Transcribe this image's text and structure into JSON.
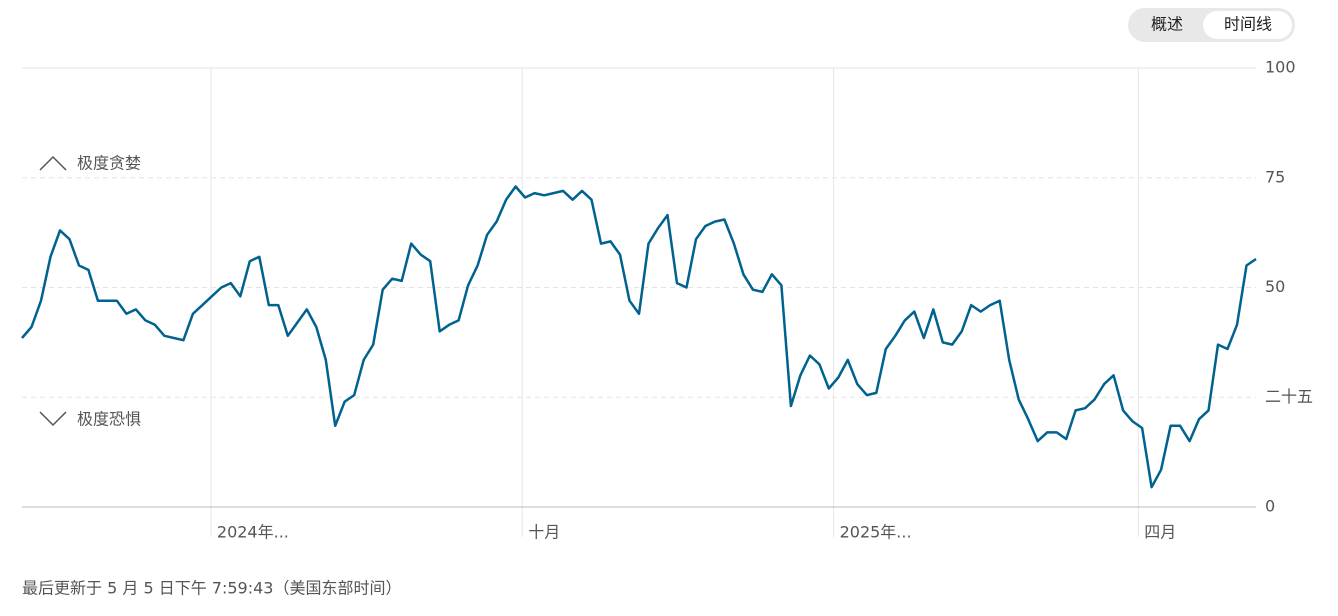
{
  "tabs": [
    "概述",
    "时间线"
  ],
  "footer": "最后更新于 5 月 5 日下午 7:59:43（美国东部时间）",
  "chart_data": {
    "type": "line",
    "annotations": [
      "极度贪婪",
      "极度恐惧"
    ],
    "xlim": [
      0,
      130
    ],
    "xticks": [
      {
        "value": 19.9,
        "label": "2024年..."
      },
      {
        "value": 52.7,
        "label": "十月"
      },
      {
        "value": 85.5,
        "label": "2025年..."
      },
      {
        "value": 117.6,
        "label": "四月"
      }
    ],
    "ylim": [
      0,
      100
    ],
    "yticks": [
      0,
      {
        "value": 25,
        "label": "二十五"
      },
      50,
      75,
      100
    ],
    "grid": true,
    "series": [
      {
        "color": "#00628f",
        "values": [
          38.5,
          41,
          47,
          57,
          63,
          61,
          55,
          54,
          47,
          47,
          47,
          44,
          45,
          42.5,
          41.5,
          39,
          38.5,
          38,
          44,
          46,
          48,
          50,
          51,
          48,
          56,
          57,
          46,
          46,
          39,
          42,
          45,
          41,
          33.5,
          18.5,
          24,
          25.5,
          33.5,
          37,
          49.5,
          52,
          51.5,
          60,
          57.5,
          56,
          40,
          41.5,
          42.5,
          50.5,
          55,
          62,
          65,
          70,
          73,
          70.5,
          71.5,
          71,
          71.5,
          72,
          70,
          72,
          70,
          60,
          60.5,
          57.5,
          47,
          44,
          60,
          63.5,
          66.5,
          51,
          50,
          61,
          64,
          65,
          65.5,
          60,
          53,
          49.5,
          49,
          53,
          50.5,
          23,
          30,
          34.5,
          32.5,
          27,
          29.5,
          33.5,
          28,
          25.5,
          26,
          36,
          39,
          42.5,
          44.5,
          38.5,
          45,
          37.5,
          37,
          40,
          46,
          44.5,
          46,
          47,
          33.5,
          24.5,
          20,
          15,
          17,
          17,
          15.5,
          22,
          22.5,
          24.5,
          28,
          30,
          22,
          19.5,
          18,
          4.5,
          8.5,
          18.5,
          18.5,
          15,
          20,
          22,
          37,
          36,
          41.5,
          55,
          56.5
        ]
      }
    ]
  }
}
